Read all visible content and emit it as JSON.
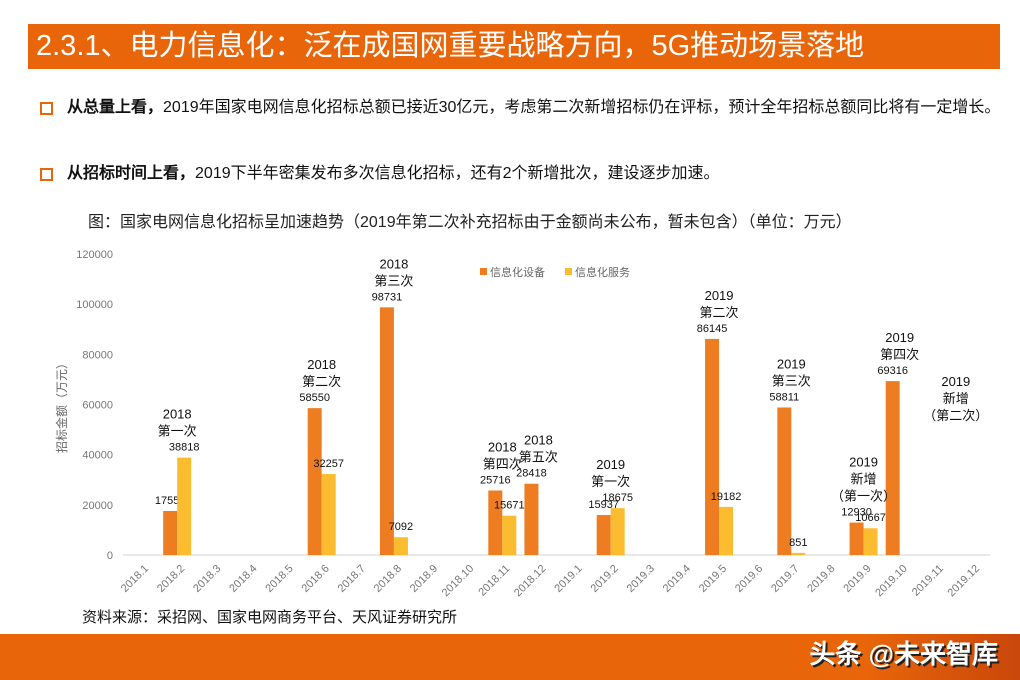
{
  "title": "2.3.1、电力信息化：泛在成国网重要战略方向，5G推动场景落地",
  "bullets": [
    {
      "bold": "从总量上看，",
      "text": "2019年国家电网信息化招标总额已接近30亿元，考虑第二次新增招标仍在评标，预计全年招标总额同比将有一定增长。"
    },
    {
      "bold": "从招标时间上看，",
      "text": "2019下半年密集发布多次信息化招标，还有2个新增批次，建设逐步加速。"
    }
  ],
  "caption": "图：国家电网信息化招标呈加速趋势（2019年第二次补充招标由于金额尚未公布，暂未包含）（单位：万元）",
  "source": "资料来源：采招网、国家电网商务平台、天风证券研究所",
  "watermark": "头条 @未来智库",
  "chart_data": {
    "type": "bar",
    "ylabel": "招标金额（万元）",
    "ylim": [
      0,
      120000
    ],
    "yticks": [
      0,
      20000,
      40000,
      60000,
      80000,
      100000,
      120000
    ],
    "legend_placement": "top",
    "grid": false,
    "categories": [
      "2018.1",
      "2018.2",
      "2018.3",
      "2018.4",
      "2018.5",
      "2018.6",
      "2018.7",
      "2018.8",
      "2018.9",
      "2018.10",
      "2018.11",
      "2018.12",
      "2019.1",
      "2019.2",
      "2019.3",
      "2019.4",
      "2019.5",
      "2019.6",
      "2019.7",
      "2019.8",
      "2019.9",
      "2019.10",
      "2019.11",
      "2019.12"
    ],
    "series": [
      {
        "name": "信息化设备",
        "color": "#ee7d22",
        "values": [
          null,
          17554,
          null,
          null,
          null,
          58550,
          null,
          98731,
          null,
          null,
          25716,
          28418,
          null,
          15937,
          null,
          null,
          86145,
          null,
          58811,
          null,
          12930,
          69316,
          null,
          null
        ]
      },
      {
        "name": "信息化服务",
        "color": "#fbbd2f",
        "values": [
          null,
          38818,
          null,
          null,
          null,
          32257,
          null,
          7092,
          null,
          null,
          15671,
          null,
          null,
          18675,
          null,
          null,
          19182,
          null,
          851,
          null,
          10667,
          null,
          null,
          null
        ]
      }
    ],
    "annotations": [
      {
        "category": "2018.2",
        "lines": [
          "2018",
          "第一次"
        ]
      },
      {
        "category": "2018.6",
        "lines": [
          "2018",
          "第二次"
        ]
      },
      {
        "category": "2018.8",
        "lines": [
          "2018",
          "第三次"
        ]
      },
      {
        "category": "2018.11",
        "lines": [
          "2018",
          "第四次"
        ]
      },
      {
        "category": "2018.12",
        "lines": [
          "2018",
          "第五次"
        ]
      },
      {
        "category": "2019.2",
        "lines": [
          "2019",
          "第一次"
        ]
      },
      {
        "category": "2019.5",
        "lines": [
          "2019",
          "第二次"
        ]
      },
      {
        "category": "2019.7",
        "lines": [
          "2019",
          "第三次"
        ]
      },
      {
        "category": "2019.9",
        "lines": [
          "2019",
          "新增",
          "（第一次）"
        ]
      },
      {
        "category": "2019.10",
        "lines": [
          "2019",
          "第四次"
        ]
      },
      {
        "category": "2019.11",
        "lines": [
          "2019",
          "新增",
          "（第二次）"
        ]
      }
    ]
  }
}
